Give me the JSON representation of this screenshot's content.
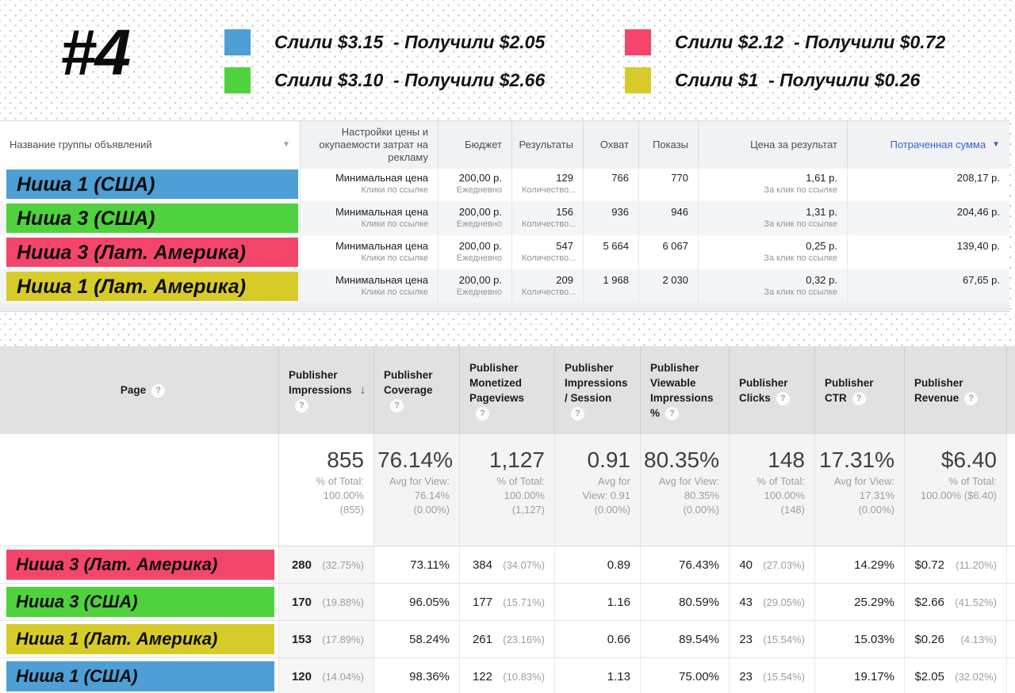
{
  "icons": {
    "help": "?",
    "sort_desc": "▼",
    "sort_down": "↓"
  },
  "header": {
    "badge": "#4",
    "legend": [
      {
        "color": "#4D9FD6",
        "text": "Слили $3.15  - Получили $2.05"
      },
      {
        "color": "#F4466B",
        "text": "Слили $2.12  - Получили $0.72"
      },
      {
        "color": "#4FD23D",
        "text": "Слили $3.10  - Получили $2.66"
      },
      {
        "color": "#D7CB2A",
        "text": "Слили $1  - Получили $0.26"
      }
    ]
  },
  "ads_table": {
    "columns": [
      "Название группы объявлений",
      "Настройки цены и окупаемости затрат на рекламу",
      "Бюджет",
      "Результаты",
      "Охват",
      "Показы",
      "Цена за результат",
      "Потраченная сумма"
    ],
    "sorted_column": "Потраченная сумма",
    "accent_link_color": "#3b5fd6",
    "rows": [
      {
        "name": "Ниша 1 (США)",
        "color": "#4D9FD6",
        "settings": [
          "Минимальная цена",
          "Клики по ссылке"
        ],
        "budget": [
          "200,00 р.",
          "Ежедневно"
        ],
        "results": [
          "129",
          "Количество..."
        ],
        "reach": "766",
        "impressions": "770",
        "cost_per_result": [
          "1,61 р.",
          "За клик по ссылке"
        ],
        "amount_spent": "208,17 р."
      },
      {
        "name": "Ниша 3 (США)",
        "color": "#4FD23D",
        "settings": [
          "Минимальная цена",
          "Клики по ссылке"
        ],
        "budget": [
          "200,00 р.",
          "Ежедневно"
        ],
        "results": [
          "156",
          "Количество..."
        ],
        "reach": "936",
        "impressions": "946",
        "cost_per_result": [
          "1,31 р.",
          "За клик по ссылке"
        ],
        "amount_spent": "204,46 р."
      },
      {
        "name": "Ниша 3 (Лат. Америка)",
        "color": "#F4466B",
        "settings": [
          "Минимальная цена",
          "Клики по ссылке"
        ],
        "budget": [
          "200,00 р.",
          "Ежедневно"
        ],
        "results": [
          "547",
          "Количество..."
        ],
        "reach": "5 664",
        "impressions": "6 067",
        "cost_per_result": [
          "0,25 р.",
          "За клик по ссылке"
        ],
        "amount_spent": "139,40 р."
      },
      {
        "name": "Ниша 1 (Лат. Америка)",
        "color": "#D7CB2A",
        "settings": [
          "Минимальная цена",
          "Клики по ссылке"
        ],
        "budget": [
          "200,00 р.",
          "Ежедневно"
        ],
        "results": [
          "209",
          "Количество..."
        ],
        "reach": "1 968",
        "impressions": "2 030",
        "cost_per_result": [
          "0,32 р.",
          "За клик по ссылке"
        ],
        "amount_spent": "67,65 р."
      }
    ]
  },
  "analytics_table": {
    "columns": [
      {
        "lines": [
          "Page"
        ],
        "help": "inline"
      },
      {
        "lines": [
          "Publisher",
          "Impressions"
        ],
        "sort": "desc",
        "help": "below"
      },
      {
        "lines": [
          "Publisher",
          "Coverage"
        ],
        "help": "below"
      },
      {
        "lines": [
          "Publisher",
          "Monetized",
          "Pageviews"
        ],
        "help": "below"
      },
      {
        "lines": [
          "Publisher",
          "Impressions",
          "/ Session"
        ],
        "help": "below"
      },
      {
        "lines": [
          "Publisher",
          "Viewable",
          "Impressions",
          "%"
        ],
        "help": "inline"
      },
      {
        "lines": [
          "Publisher",
          "Clicks"
        ],
        "help": "inline"
      },
      {
        "lines": [
          "Publisher",
          "CTR"
        ],
        "help": "inline"
      },
      {
        "lines": [
          "Publisher",
          "Revenue"
        ],
        "help": "inline"
      }
    ],
    "totals": [
      {
        "big": "855",
        "sub": [
          "% of Total:",
          "100.00%",
          "(855)"
        ],
        "highlight": true
      },
      {
        "big": "76.14%",
        "sub": [
          "Avg for View:",
          "76.14%",
          "(0.00%)"
        ]
      },
      {
        "big": "1,127",
        "sub": [
          "% of Total:",
          "100.00%",
          "(1,127)"
        ]
      },
      {
        "big": "0.91",
        "sub": [
          "Avg for",
          "View: 0.91",
          "(0.00%)"
        ]
      },
      {
        "big": "80.35%",
        "sub": [
          "Avg for View:",
          "80.35%",
          "(0.00%)"
        ]
      },
      {
        "big": "148",
        "sub": [
          "% of Total:",
          "100.00%",
          "(148)"
        ]
      },
      {
        "big": "17.31%",
        "sub": [
          "Avg for View:",
          "17.31%",
          "(0.00%)"
        ]
      },
      {
        "big": "$6.40",
        "sub": [
          "% of Total:",
          "100.00% ($6.40)"
        ]
      }
    ],
    "rows": [
      {
        "name": "Ниша 3 (Лат. Америка)",
        "color": "#F4466B",
        "impressions": {
          "v": "280",
          "pct": "(32.75%)"
        },
        "coverage": "73.11%",
        "monetized": {
          "v": "384",
          "pct": "(34.07%)"
        },
        "per_session": "0.89",
        "viewable": "76.43%",
        "clicks": {
          "v": "40",
          "pct": "(27.03%)"
        },
        "ctr": "14.29%",
        "revenue": {
          "v": "$0.72",
          "pct": "(11.20%)"
        }
      },
      {
        "name": "Ниша 3 (США)",
        "color": "#4FD23D",
        "impressions": {
          "v": "170",
          "pct": "(19.88%)"
        },
        "coverage": "96.05%",
        "monetized": {
          "v": "177",
          "pct": "(15.71%)"
        },
        "per_session": "1.16",
        "viewable": "80.59%",
        "clicks": {
          "v": "43",
          "pct": "(29.05%)"
        },
        "ctr": "25.29%",
        "revenue": {
          "v": "$2.66",
          "pct": "(41.52%)"
        }
      },
      {
        "name": "Ниша 1 (Лат. Америка)",
        "color": "#D7CB2A",
        "impressions": {
          "v": "153",
          "pct": "(17.89%)"
        },
        "coverage": "58.24%",
        "monetized": {
          "v": "261",
          "pct": "(23.16%)"
        },
        "per_session": "0.66",
        "viewable": "89.54%",
        "clicks": {
          "v": "23",
          "pct": "(15.54%)"
        },
        "ctr": "15.03%",
        "revenue": {
          "v": "$0.26",
          "pct": "(4.13%)"
        }
      },
      {
        "name": "Ниша 1 (США)",
        "color": "#4D9FD6",
        "impressions": {
          "v": "120",
          "pct": "(14.04%)"
        },
        "coverage": "98.36%",
        "monetized": {
          "v": "122",
          "pct": "(10.83%)"
        },
        "per_session": "1.13",
        "viewable": "75.00%",
        "clicks": {
          "v": "23",
          "pct": "(15.54%)"
        },
        "ctr": "19.17%",
        "revenue": {
          "v": "$2.05",
          "pct": "(32.02%)"
        }
      }
    ]
  }
}
